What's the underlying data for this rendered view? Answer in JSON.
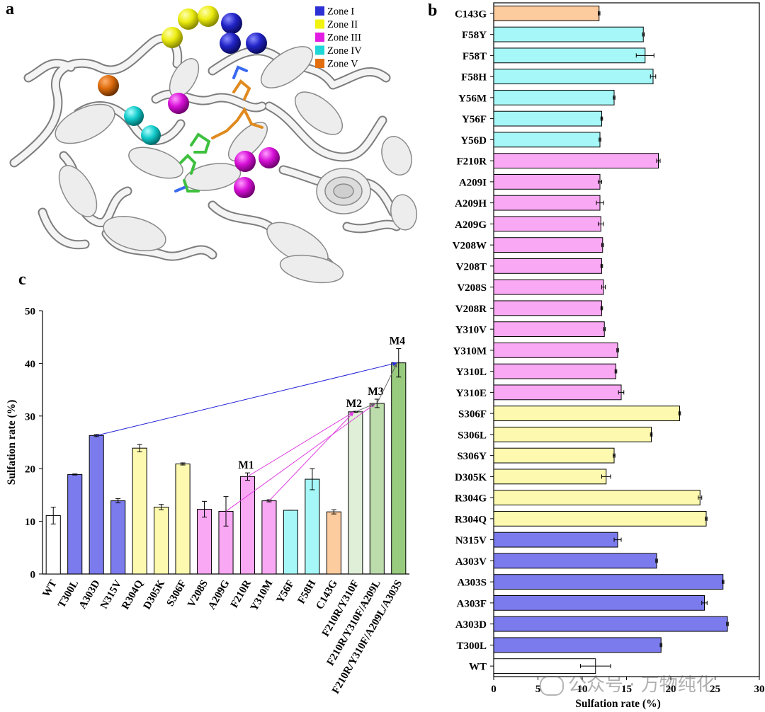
{
  "panels": {
    "a": "a",
    "b": "b",
    "c": "c"
  },
  "panel_a": {
    "legend": [
      {
        "label": "Zone I",
        "color": "#2b2fd4"
      },
      {
        "label": "Zone II",
        "color": "#f2f20f"
      },
      {
        "label": "Zone III",
        "color": "#e21ce2"
      },
      {
        "label": "Zone IV",
        "color": "#1ed6d6"
      },
      {
        "label": "Zone V",
        "color": "#e26e0e"
      }
    ]
  },
  "chart_data": [
    {
      "type": "bar",
      "orientation": "horizontal",
      "xlabel": "Sulfation rate (%)",
      "xlim": [
        0,
        30
      ],
      "xticks": [
        0,
        5,
        10,
        15,
        20,
        25,
        30
      ],
      "colors": {
        "WT": "#ffffff",
        "Zone I": "#7b7bee",
        "Zone II": "#fdfab0",
        "Zone III": "#f9a8f3",
        "Zone IV": "#a6f7f7",
        "Zone V": "#fccb9e"
      },
      "bars": [
        {
          "label": "C143G",
          "value": 11.9,
          "error": 0.1,
          "zone": "Zone V"
        },
        {
          "label": "F58Y",
          "value": 16.9,
          "error": 0.1,
          "zone": "Zone IV"
        },
        {
          "label": "F58T",
          "value": 17.1,
          "error": 1.0,
          "zone": "Zone IV"
        },
        {
          "label": "F58H",
          "value": 18.0,
          "error": 0.3,
          "zone": "Zone IV"
        },
        {
          "label": "Y56M",
          "value": 13.6,
          "error": 0.1,
          "zone": "Zone IV"
        },
        {
          "label": "Y56F",
          "value": 12.2,
          "error": 0.1,
          "zone": "Zone IV"
        },
        {
          "label": "Y56D",
          "value": 12.0,
          "error": 0.1,
          "zone": "Zone IV"
        },
        {
          "label": "F210R",
          "value": 18.6,
          "error": 0.2,
          "zone": "Zone III"
        },
        {
          "label": "A209I",
          "value": 12.0,
          "error": 0.2,
          "zone": "Zone III"
        },
        {
          "label": "A209H",
          "value": 12.0,
          "error": 0.4,
          "zone": "Zone III"
        },
        {
          "label": "A209G",
          "value": 12.1,
          "error": 0.3,
          "zone": "Zone III"
        },
        {
          "label": "V208W",
          "value": 12.3,
          "error": 0.1,
          "zone": "Zone III"
        },
        {
          "label": "V208T",
          "value": 12.2,
          "error": 0.1,
          "zone": "Zone III"
        },
        {
          "label": "V208S",
          "value": 12.4,
          "error": 0.2,
          "zone": "Zone III"
        },
        {
          "label": "V208R",
          "value": 12.2,
          "error": 0.1,
          "zone": "Zone III"
        },
        {
          "label": "Y310V",
          "value": 12.5,
          "error": 0.1,
          "zone": "Zone III"
        },
        {
          "label": "Y310M",
          "value": 14.0,
          "error": 0.1,
          "zone": "Zone III"
        },
        {
          "label": "Y310L",
          "value": 13.8,
          "error": 0.1,
          "zone": "Zone III"
        },
        {
          "label": "Y310E",
          "value": 14.4,
          "error": 0.3,
          "zone": "Zone III"
        },
        {
          "label": "S306F",
          "value": 21.0,
          "error": 0.1,
          "zone": "Zone II"
        },
        {
          "label": "S306L",
          "value": 17.8,
          "error": 0.1,
          "zone": "Zone II"
        },
        {
          "label": "S306Y",
          "value": 13.6,
          "error": 0.1,
          "zone": "Zone II"
        },
        {
          "label": "D305K",
          "value": 12.7,
          "error": 0.5,
          "zone": "Zone II"
        },
        {
          "label": "R304G",
          "value": 23.3,
          "error": 0.2,
          "zone": "Zone II"
        },
        {
          "label": "R304Q",
          "value": 24.0,
          "error": 0.1,
          "zone": "Zone II"
        },
        {
          "label": "N315V",
          "value": 14.0,
          "error": 0.4,
          "zone": "Zone I"
        },
        {
          "label": "A303V",
          "value": 18.4,
          "error": 0.1,
          "zone": "Zone I"
        },
        {
          "label": "A303S",
          "value": 25.9,
          "error": 0.1,
          "zone": "Zone I"
        },
        {
          "label": "A303F",
          "value": 23.8,
          "error": 0.3,
          "zone": "Zone I"
        },
        {
          "label": "A303D",
          "value": 26.4,
          "error": 0.1,
          "zone": "Zone I"
        },
        {
          "label": "T300L",
          "value": 18.9,
          "error": 0.1,
          "zone": "Zone I"
        },
        {
          "label": "WT",
          "value": 11.5,
          "error": 1.7,
          "zone": "WT"
        }
      ]
    },
    {
      "type": "bar",
      "ylabel": "Sulfation rate (%)",
      "ylim": [
        0,
        50
      ],
      "yticks": [
        0,
        10,
        20,
        30,
        40,
        50
      ],
      "bars": [
        {
          "label": "WT",
          "value": 11.1,
          "error": 1.6,
          "color": "#ffffff"
        },
        {
          "label": "T300L",
          "value": 18.9,
          "error": 0.1,
          "color": "#7b7bee"
        },
        {
          "label": "A303D",
          "value": 26.3,
          "error": 0.2,
          "color": "#7b7bee"
        },
        {
          "label": "N315V",
          "value": 13.9,
          "error": 0.4,
          "color": "#7b7bee"
        },
        {
          "label": "R304Q",
          "value": 23.9,
          "error": 0.7,
          "color": "#fdfab0"
        },
        {
          "label": "D305K",
          "value": 12.7,
          "error": 0.5,
          "color": "#fdfab0"
        },
        {
          "label": "S306F",
          "value": 20.9,
          "error": 0.2,
          "color": "#fdfab0"
        },
        {
          "label": "V208S",
          "value": 12.3,
          "error": 1.5,
          "color": "#f9a8f3"
        },
        {
          "label": "A209G",
          "value": 11.9,
          "error": 2.8,
          "color": "#f9a8f3"
        },
        {
          "label": "F210R",
          "value": 18.5,
          "error": 0.7,
          "color": "#f9a8f3",
          "annotation": "M1"
        },
        {
          "label": "Y310M",
          "value": 13.9,
          "error": 0.2,
          "color": "#f9a8f3"
        },
        {
          "label": "Y56F",
          "value": 12.1,
          "error": 0.0,
          "color": "#a6f7f7"
        },
        {
          "label": "F58H",
          "value": 18.0,
          "error": 2.0,
          "color": "#a6f7f7"
        },
        {
          "label": "C143G",
          "value": 11.8,
          "error": 0.4,
          "color": "#fccb9e"
        },
        {
          "label": "F210R/Y310F",
          "value": 30.8,
          "error": 0.1,
          "color": "#e0efd8",
          "annotation": "M2"
        },
        {
          "label": "F210R/Y310F/A209L",
          "value": 32.4,
          "error": 0.8,
          "color": "#bcdcac",
          "annotation": "M3"
        },
        {
          "label": "F210R/Y310F/A209L/A303S",
          "value": 40.1,
          "error": 2.7,
          "color": "#98cb7e",
          "annotation": "M4"
        }
      ],
      "arrows": [
        {
          "from": "A303D",
          "to": "F210R/Y310F/A209L/A303S",
          "color": "#2222d8"
        },
        {
          "from": "F210R",
          "to": "F210R/Y310F",
          "color": "#e040e0"
        },
        {
          "from": "Y310M",
          "to": "F210R/Y310F",
          "color": "#e040e0"
        },
        {
          "from": "A209G",
          "to": "F210R/Y310F/A209L",
          "color": "#e040e0"
        },
        {
          "from": "F210R/Y310F",
          "to": "F210R/Y310F/A209L",
          "color": "#666666"
        },
        {
          "from": "F210R/Y310F/A209L",
          "to": "F210R/Y310F/A209L/A303S",
          "color": "#666666"
        }
      ]
    }
  ],
  "watermark": "公众号 · 万物纯化"
}
